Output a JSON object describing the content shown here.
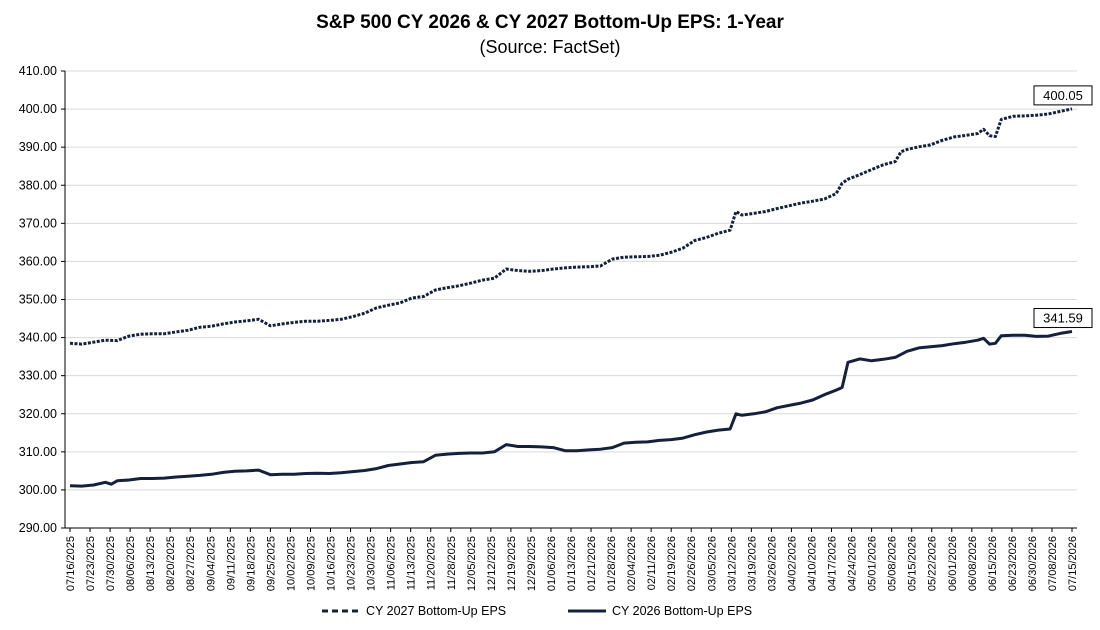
{
  "chart_data": {
    "type": "line",
    "title": "S&P 500 CY 2026 & CY 2027 Bottom-Up EPS: 1-Year",
    "subtitle": "(Source: FactSet)",
    "xlabel": "",
    "ylabel": "",
    "ylim": [
      290,
      410
    ],
    "y_ticks": [
      "290.00",
      "300.00",
      "310.00",
      "320.00",
      "330.00",
      "340.00",
      "350.00",
      "360.00",
      "370.00",
      "380.00",
      "390.00",
      "400.00",
      "410.00"
    ],
    "x_ticks": [
      "07/16/2025",
      "07/23/2025",
      "07/30/2025",
      "08/06/2025",
      "08/13/2025",
      "08/20/2025",
      "08/27/2025",
      "09/04/2025",
      "09/11/2025",
      "09/18/2025",
      "09/25/2025",
      "10/02/2025",
      "10/09/2025",
      "10/16/2025",
      "10/23/2025",
      "10/30/2025",
      "11/06/2025",
      "11/13/2025",
      "11/20/2025",
      "11/28/2025",
      "12/05/2025",
      "12/12/2025",
      "12/19/2025",
      "12/29/2025",
      "01/06/2026",
      "01/13/2026",
      "01/21/2026",
      "01/28/2026",
      "02/04/2026",
      "02/11/2026",
      "02/19/2026",
      "02/26/2026",
      "03/05/2026",
      "03/12/2026",
      "03/19/2026",
      "03/26/2026",
      "04/02/2026",
      "04/10/2026",
      "04/17/2026",
      "04/24/2026",
      "05/01/2026",
      "05/08/2026",
      "05/15/2026",
      "05/22/2026",
      "06/01/2026",
      "06/08/2026",
      "06/15/2026",
      "06/23/2026",
      "06/30/2026",
      "07/08/2026",
      "07/15/2026"
    ],
    "grid": true,
    "legend_position": "bottom",
    "series": [
      {
        "name": "CY 2027 Bottom-Up EPS",
        "style": "dashed-markers",
        "color": "#14213d",
        "values": [
          [
            0,
            338.5
          ],
          [
            1,
            338.3
          ],
          [
            2,
            338.8
          ],
          [
            3,
            339.3
          ],
          [
            4,
            339.2
          ],
          [
            5,
            340.4
          ],
          [
            6,
            340.9
          ],
          [
            7,
            341.0
          ],
          [
            8,
            341.0
          ],
          [
            9,
            341.5
          ],
          [
            10,
            341.9
          ],
          [
            11,
            342.7
          ],
          [
            12,
            343.0
          ],
          [
            13,
            343.6
          ],
          [
            14,
            344.1
          ],
          [
            15,
            344.4
          ],
          [
            16,
            344.8
          ],
          [
            17,
            343.1
          ],
          [
            18,
            343.6
          ],
          [
            19,
            344.0
          ],
          [
            20,
            344.3
          ],
          [
            21,
            344.3
          ],
          [
            22,
            344.5
          ],
          [
            23,
            344.8
          ],
          [
            24,
            345.5
          ],
          [
            25,
            346.4
          ],
          [
            26,
            347.8
          ],
          [
            27,
            348.5
          ],
          [
            28,
            349.1
          ],
          [
            29,
            350.4
          ],
          [
            30,
            350.8
          ],
          [
            31,
            352.5
          ],
          [
            32,
            353.1
          ],
          [
            33,
            353.6
          ],
          [
            34,
            354.3
          ],
          [
            35,
            355.1
          ],
          [
            36,
            355.6
          ],
          [
            37,
            358.0
          ],
          [
            38,
            357.6
          ],
          [
            39,
            357.4
          ],
          [
            40,
            357.6
          ],
          [
            41,
            358.0
          ],
          [
            42,
            358.3
          ],
          [
            43,
            358.5
          ],
          [
            44,
            358.6
          ],
          [
            45,
            358.8
          ],
          [
            46,
            360.6
          ],
          [
            47,
            361.1
          ],
          [
            48,
            361.2
          ],
          [
            49,
            361.3
          ],
          [
            50,
            361.6
          ],
          [
            51,
            362.4
          ],
          [
            52,
            363.5
          ],
          [
            53,
            365.5
          ],
          [
            54,
            366.3
          ],
          [
            55,
            367.4
          ],
          [
            56,
            368.2
          ],
          [
            56.5,
            373.1
          ],
          [
            57,
            372.2
          ],
          [
            58,
            372.6
          ],
          [
            59,
            373.1
          ],
          [
            60,
            373.9
          ],
          [
            61,
            374.6
          ],
          [
            62,
            375.3
          ],
          [
            63,
            375.8
          ],
          [
            64,
            376.4
          ],
          [
            65,
            377.8
          ],
          [
            65.5,
            380.5
          ],
          [
            66,
            381.6
          ],
          [
            67,
            382.8
          ],
          [
            68,
            384.1
          ],
          [
            69,
            385.4
          ],
          [
            70,
            386.2
          ],
          [
            70.5,
            388.8
          ],
          [
            71,
            389.4
          ],
          [
            72,
            390.1
          ],
          [
            73,
            390.6
          ],
          [
            74,
            391.8
          ],
          [
            75,
            392.7
          ],
          [
            76,
            393.1
          ],
          [
            77,
            393.6
          ],
          [
            77.5,
            394.7
          ],
          [
            78,
            393.0
          ],
          [
            78.5,
            392.8
          ],
          [
            79,
            397.3
          ],
          [
            80,
            398.1
          ],
          [
            81,
            398.2
          ],
          [
            82,
            398.4
          ],
          [
            83,
            398.7
          ],
          [
            84,
            399.4
          ],
          [
            85,
            400.05
          ]
        ]
      },
      {
        "name": "CY 2026 Bottom-Up EPS",
        "style": "solid",
        "color": "#14213d",
        "values": [
          [
            0,
            301.1
          ],
          [
            1,
            301.0
          ],
          [
            2,
            301.3
          ],
          [
            3,
            302.0
          ],
          [
            3.5,
            301.5
          ],
          [
            4,
            302.4
          ],
          [
            5,
            302.6
          ],
          [
            6,
            303.0
          ],
          [
            7,
            303.0
          ],
          [
            8,
            303.1
          ],
          [
            9,
            303.4
          ],
          [
            10,
            303.6
          ],
          [
            11,
            303.8
          ],
          [
            12,
            304.1
          ],
          [
            13,
            304.6
          ],
          [
            14,
            304.9
          ],
          [
            15,
            305.0
          ],
          [
            16,
            305.2
          ],
          [
            17,
            304.0
          ],
          [
            18,
            304.1
          ],
          [
            19,
            304.1
          ],
          [
            20,
            304.3
          ],
          [
            21,
            304.4
          ],
          [
            22,
            304.3
          ],
          [
            23,
            304.5
          ],
          [
            24,
            304.8
          ],
          [
            25,
            305.1
          ],
          [
            26,
            305.6
          ],
          [
            27,
            306.4
          ],
          [
            28,
            306.8
          ],
          [
            29,
            307.2
          ],
          [
            30,
            307.4
          ],
          [
            31,
            309.1
          ],
          [
            32,
            309.4
          ],
          [
            33,
            309.6
          ],
          [
            34,
            309.7
          ],
          [
            35,
            309.7
          ],
          [
            36,
            310.0
          ],
          [
            37,
            311.9
          ],
          [
            38,
            311.4
          ],
          [
            39,
            311.4
          ],
          [
            40,
            311.3
          ],
          [
            41,
            311.1
          ],
          [
            42,
            310.3
          ],
          [
            43,
            310.3
          ],
          [
            44,
            310.5
          ],
          [
            45,
            310.7
          ],
          [
            46,
            311.1
          ],
          [
            47,
            312.3
          ],
          [
            48,
            312.5
          ],
          [
            49,
            312.6
          ],
          [
            50,
            313.0
          ],
          [
            51,
            313.2
          ],
          [
            52,
            313.6
          ],
          [
            53,
            314.5
          ],
          [
            54,
            315.2
          ],
          [
            55,
            315.7
          ],
          [
            56,
            316.0
          ],
          [
            56.5,
            320.0
          ],
          [
            57,
            319.6
          ],
          [
            58,
            320.0
          ],
          [
            59,
            320.5
          ],
          [
            60,
            321.6
          ],
          [
            61,
            322.2
          ],
          [
            62,
            322.8
          ],
          [
            63,
            323.6
          ],
          [
            64,
            325.0
          ],
          [
            65,
            326.2
          ],
          [
            65.5,
            326.9
          ],
          [
            66,
            333.5
          ],
          [
            67,
            334.4
          ],
          [
            68,
            333.9
          ],
          [
            69,
            334.3
          ],
          [
            70,
            334.8
          ],
          [
            71,
            336.4
          ],
          [
            72,
            337.3
          ],
          [
            73,
            337.6
          ],
          [
            74,
            337.9
          ],
          [
            75,
            338.4
          ],
          [
            76,
            338.8
          ],
          [
            77,
            339.3
          ],
          [
            77.5,
            339.8
          ],
          [
            78,
            338.3
          ],
          [
            78.5,
            338.5
          ],
          [
            79,
            340.5
          ],
          [
            80,
            340.6
          ],
          [
            81,
            340.6
          ],
          [
            82,
            340.3
          ],
          [
            83,
            340.4
          ],
          [
            84,
            341.1
          ],
          [
            85,
            341.59
          ]
        ]
      }
    ],
    "annotations": [
      {
        "series": "CY 2027 Bottom-Up EPS",
        "text": "400.05"
      },
      {
        "series": "CY 2026 Bottom-Up EPS",
        "text": "341.59"
      }
    ]
  }
}
